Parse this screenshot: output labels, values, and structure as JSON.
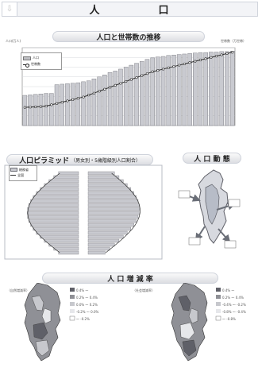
{
  "header": {
    "left_icon": "down-arrow-icon",
    "title_left": "人",
    "title_right": "口"
  },
  "section_titles": {
    "trend": "人口と世帯数の推移",
    "pyramid": "人口ピラミッド",
    "pyramid_sub": "（男女別・5歳階級別人口割合）",
    "movement": "人 口 動 態",
    "rates": "人 口 増 減 率"
  },
  "top_chart_axes": {
    "left_unit": "人口(万人)",
    "right_unit": "世帯数（万世帯）"
  },
  "legend": {
    "population": "人口",
    "households": "世帯数"
  },
  "chart_data": {
    "type": "bar",
    "title": "人口と世帯数の推移",
    "ylim": [
      0,
      160
    ],
    "y2lim": [
      0,
      60
    ],
    "series": [
      {
        "name": "人口",
        "type": "bar",
        "values": [
          62,
          63,
          64,
          65,
          66,
          66,
          84,
          85,
          86,
          87,
          88,
          90,
          92,
          96,
          100,
          104,
          109,
          112,
          116,
          120,
          124,
          128,
          132,
          136,
          139,
          141,
          142,
          144,
          145,
          146,
          147,
          148,
          149,
          150,
          150,
          151,
          151,
          152,
          152,
          153
        ]
      },
      {
        "name": "世帯数",
        "type": "line",
        "values": [
          14,
          14.2,
          14.4,
          14.6,
          15,
          16,
          17,
          18,
          19,
          20,
          21,
          22,
          23.5,
          25,
          26.5,
          28,
          29.5,
          31,
          32.5,
          34,
          35.5,
          37,
          38.5,
          40,
          41.5,
          42.5,
          43.5,
          44.5,
          45.5,
          46.5,
          47.5,
          48.5,
          49.5,
          50.5,
          51.5,
          52.5,
          53.5,
          54.5,
          55.5,
          56.5
        ]
      }
    ]
  },
  "pyramid": {
    "legend_bar": "総務省",
    "legend_line": "全国"
  },
  "rate_labels": {
    "natural": "（自然増減率）",
    "social": "（社会増減率）",
    "left_legend": [
      "0.4% ～",
      "0.2% ～ 0.4%",
      "0.0% ～ 0.2%",
      "-0.2% ～ 0.0%",
      "～ -0.2%"
    ],
    "right_legend": [
      "0.4% ～",
      "0.2% ～ 0.4%",
      "-0.4% ～ -0.2%",
      "-0.8% ～ -0.4%",
      "～ -0.8%"
    ]
  },
  "colors": {
    "bar_fill": "#c9cad0",
    "bar_stroke": "#6f7077",
    "line": "#2f2f2f",
    "map_dark": "#5f6068",
    "map_mid": "#8f9096",
    "map_light": "#c7c8cd",
    "map_pale": "#e6e7ea"
  }
}
